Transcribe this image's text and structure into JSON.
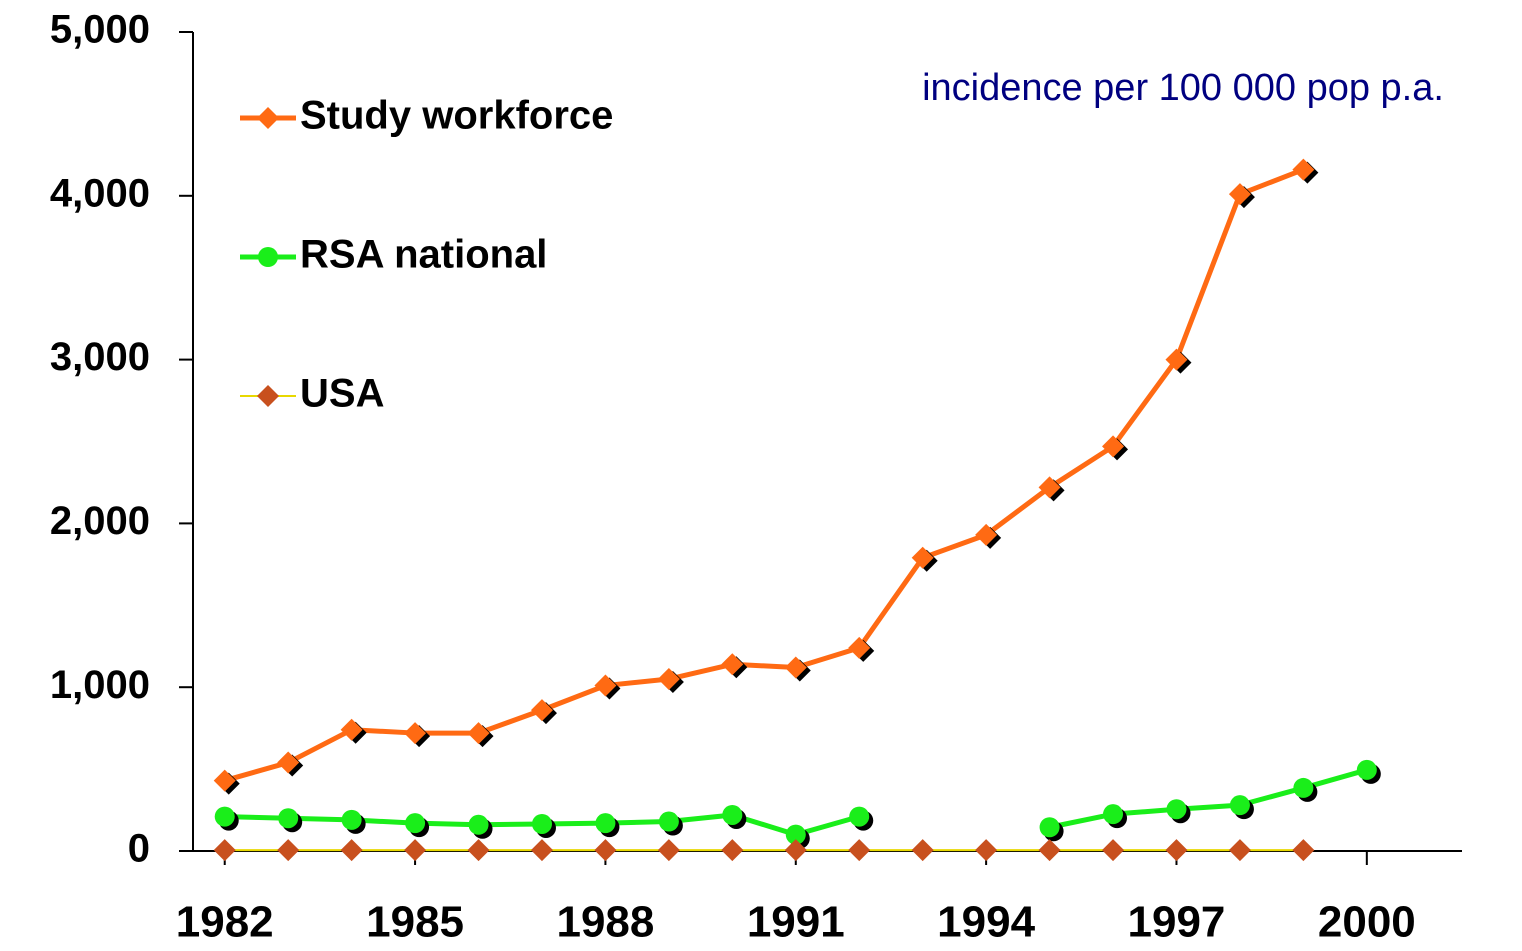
{
  "chart_data": {
    "type": "line",
    "annotation": "incidence per 100 000 pop p.a.",
    "x": [
      1982,
      1983,
      1984,
      1985,
      1986,
      1987,
      1988,
      1989,
      1990,
      1991,
      1992,
      1993,
      1994,
      1995,
      1996,
      1997,
      1998,
      1999,
      2000
    ],
    "xlim": [
      1981.5,
      2001.5
    ],
    "xticks": [
      1982,
      1985,
      1988,
      1991,
      1994,
      1997,
      2000
    ],
    "ylim": [
      0,
      5000
    ],
    "yticks": [
      0,
      {
        "value": 1000,
        "label": "1,000"
      },
      {
        "value": 2000,
        "label": "2,000"
      },
      {
        "value": 3000,
        "label": "3,000"
      },
      {
        "value": 4000,
        "label": "4,000"
      },
      {
        "value": 5000,
        "label": "5,000"
      }
    ],
    "series": [
      {
        "name": "Study workforce",
        "color": "#ff6a13",
        "marker": "diamond",
        "values": [
          430,
          540,
          740,
          720,
          720,
          860,
          1010,
          1050,
          1140,
          1120,
          1240,
          1790,
          1930,
          2220,
          2470,
          3000,
          4010,
          4160,
          null
        ]
      },
      {
        "name": "RSA national",
        "color": "#1aee1a",
        "marker": "circle",
        "values": [
          210,
          200,
          190,
          170,
          160,
          165,
          170,
          180,
          220,
          100,
          210,
          null,
          null,
          145,
          225,
          255,
          280,
          385,
          495
        ]
      },
      {
        "name": "USA",
        "color": "#e8d800",
        "marker_color": "#c8501e",
        "marker": "diamond",
        "values": [
          5,
          5,
          5,
          5,
          5,
          5,
          5,
          5,
          5,
          5,
          5,
          5,
          5,
          5,
          5,
          5,
          5,
          5,
          null
        ]
      }
    ]
  }
}
